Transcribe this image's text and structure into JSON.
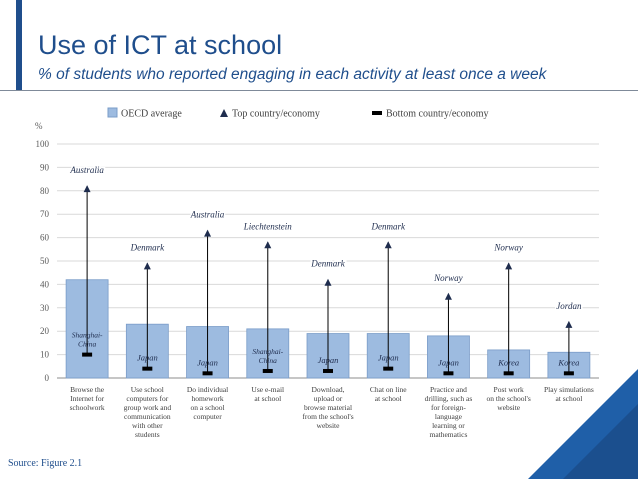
{
  "header": {
    "title": "Use of ICT at school",
    "subtitle": "% of students who reported engaging in each activity at least once a week"
  },
  "footer": {
    "source": "Source: Figure 2.1"
  },
  "colors": {
    "brand": "#1f4e8c",
    "bar_fill": "#9dbbe0",
    "bar_stroke": "#7a9cc8",
    "marker": "#1f2d4e"
  },
  "chart_data": {
    "type": "bar",
    "ylabel": "%",
    "ylim": [
      0,
      100
    ],
    "yticks": [
      0,
      10,
      20,
      30,
      40,
      50,
      60,
      70,
      80,
      90,
      100
    ],
    "grid": true,
    "legend_position": "top",
    "legend": {
      "bar": "OECD average",
      "top": "Top country/economy",
      "bottom": "Bottom country/economy"
    },
    "categories": [
      [
        "Browse the",
        "Internet for",
        "schoolwork"
      ],
      [
        "Use school",
        "computers for",
        "group work and",
        "communication",
        "with other",
        "students"
      ],
      [
        "Do individual",
        "homework",
        "on a school",
        "computer"
      ],
      [
        "Use e-mail",
        "at school"
      ],
      [
        "Download,",
        "upload or",
        "browse material",
        "from the school's",
        "website"
      ],
      [
        "Chat on line",
        "at school"
      ],
      [
        "Practice and",
        "drilling, such as",
        "for foreign-",
        "language",
        "learning or",
        "mathematics"
      ],
      [
        "Post work",
        "on the school's",
        "website"
      ],
      [
        "Play simulations",
        "at school"
      ]
    ],
    "series": [
      {
        "name": "OECD average",
        "values": [
          42,
          23,
          22,
          21,
          19,
          19,
          18,
          12,
          11
        ]
      },
      {
        "name": "Top country/economy",
        "values": [
          82,
          49,
          63,
          58,
          42,
          58,
          36,
          49,
          24
        ]
      },
      {
        "name": "Bottom country/economy",
        "values": [
          10,
          4,
          2,
          3,
          3,
          4,
          2,
          2,
          2
        ]
      }
    ],
    "top_labels": [
      [
        "Australia"
      ],
      [
        "Denmark"
      ],
      [
        "Australia"
      ],
      [
        "Liechtenstein"
      ],
      [
        "Denmark"
      ],
      [
        "Denmark"
      ],
      [
        "Norway"
      ],
      [
        "Norway"
      ],
      [
        "Jordan"
      ]
    ],
    "bottom_labels": [
      [
        "Shanghai-",
        "China"
      ],
      [
        "Japan"
      ],
      [
        "Japan"
      ],
      [
        "Shanghai-",
        "China"
      ],
      [
        "Japan"
      ],
      [
        "Japan"
      ],
      [
        "Japan"
      ],
      [
        "Korea"
      ],
      [
        "Korea"
      ]
    ]
  }
}
